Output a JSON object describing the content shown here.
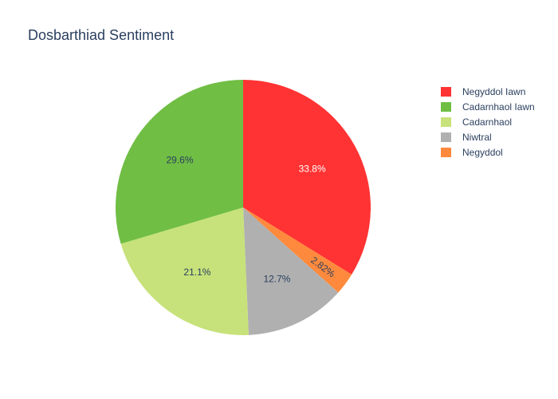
{
  "chart_data": {
    "type": "pie",
    "title": "Dosbarthiad Sentiment",
    "slices": [
      {
        "label": "Negyddol Iawn",
        "percent": 33.8,
        "percent_label": "33.8%",
        "color": "#ff3333",
        "text_color": "#ffffff"
      },
      {
        "label": "Negyddol",
        "percent": 2.82,
        "percent_label": "2.82%",
        "color": "#ff8a3d",
        "text_color": "#2a3f5f"
      },
      {
        "label": "Niwtral",
        "percent": 12.7,
        "percent_label": "12.7%",
        "color": "#b0b0b0",
        "text_color": "#2a3f5f"
      },
      {
        "label": "Cadarnhaol",
        "percent": 21.1,
        "percent_label": "21.1%",
        "color": "#c7e27a",
        "text_color": "#2a3f5f"
      },
      {
        "label": "Cadarnhaol Iawn",
        "percent": 29.6,
        "percent_label": "29.6%",
        "color": "#70be44",
        "text_color": "#2a3f5f"
      }
    ],
    "legend": {
      "placement": "top-right",
      "order": [
        "Negyddol Iawn",
        "Cadarnhaol Iawn",
        "Cadarnhaol",
        "Niwtral",
        "Negyddol"
      ]
    },
    "direction": "clockwise",
    "start": "top"
  }
}
